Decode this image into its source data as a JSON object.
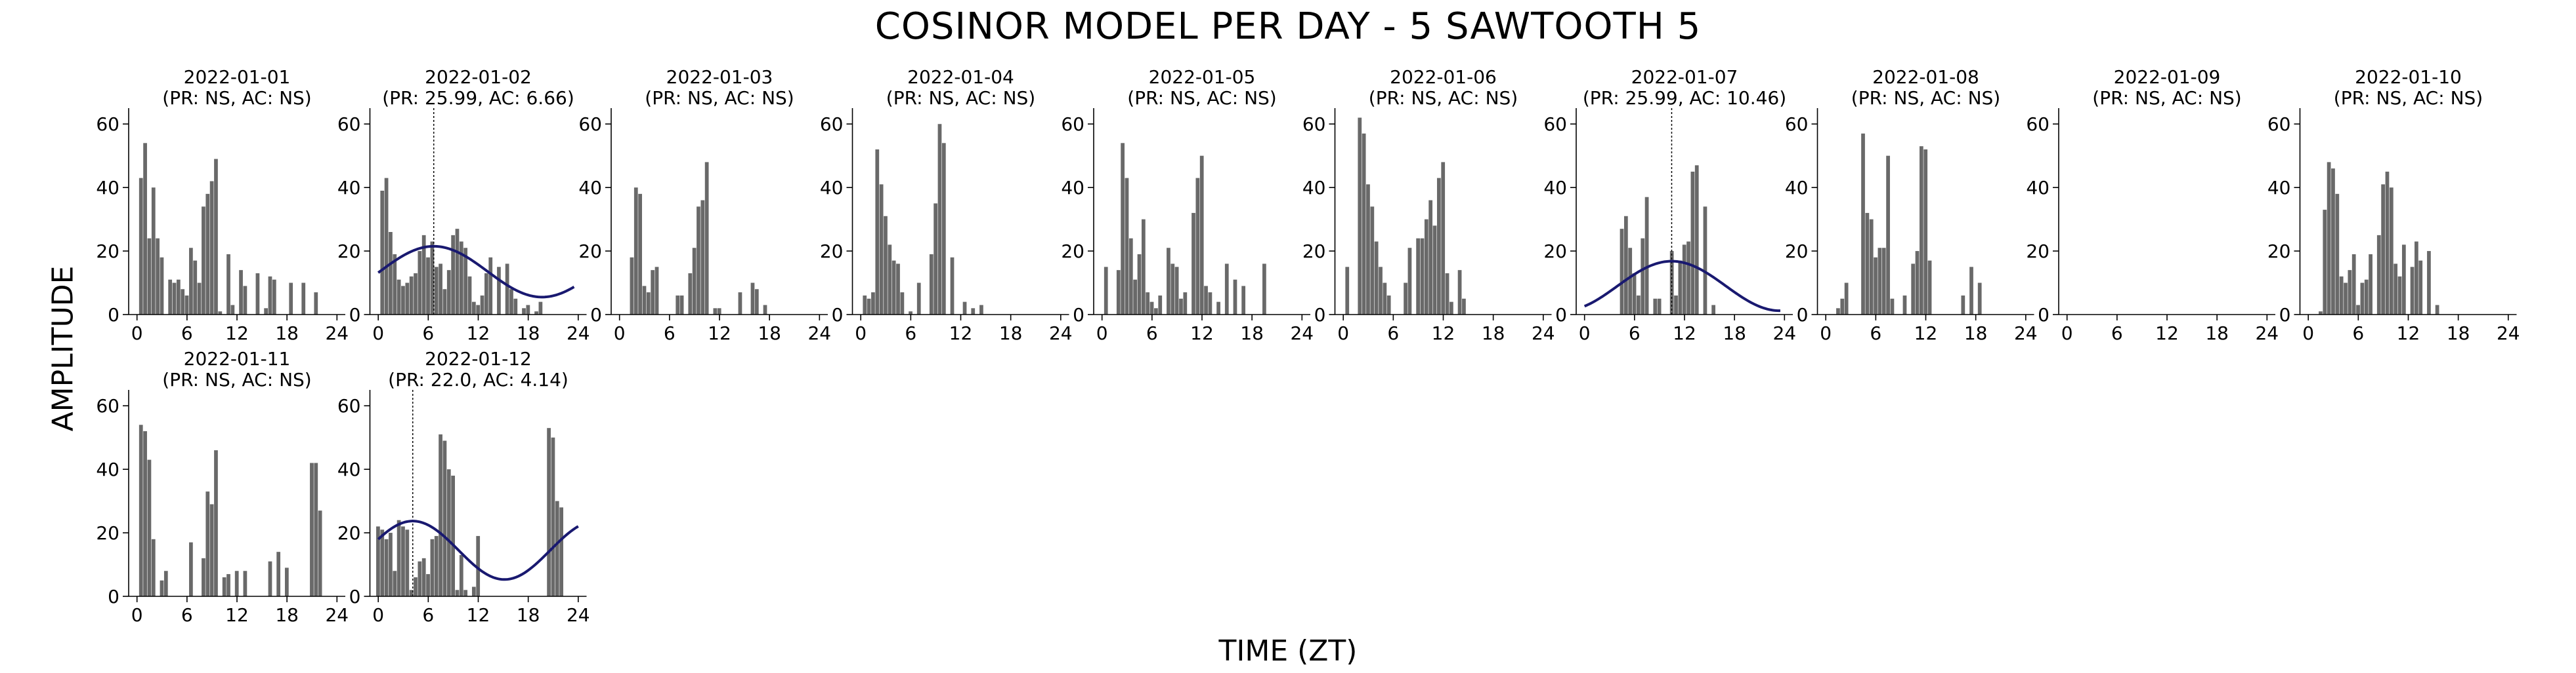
{
  "figure": {
    "title": "COSINOR MODEL PER DAY - 5 SAWTOOTH 5",
    "xlabel": "TIME (ZT)",
    "ylabel": "AMPLITUDE",
    "colors": {
      "bar": "#696969",
      "fit": "#191970",
      "axis": "#000000",
      "acrophase_line": "#000000"
    }
  },
  "chart_data": [
    {
      "type": "bar",
      "title": "2022-01-01",
      "subtitle": "(PR: NS, AC: NS)",
      "xticks": [
        0,
        6,
        12,
        18,
        24
      ],
      "yticks": [
        0,
        20,
        40,
        60
      ],
      "xlim": [
        -1,
        25
      ],
      "ylim": [
        0,
        65
      ],
      "x": [
        0,
        0.5,
        1,
        1.5,
        2,
        2.5,
        3,
        3.5,
        4,
        4.5,
        5,
        5.5,
        6,
        6.5,
        7,
        7.5,
        8,
        8.5,
        9,
        9.5,
        10,
        10.5,
        11,
        11.5,
        12,
        12.5,
        13,
        13.5,
        14,
        14.5,
        15,
        15.5,
        16,
        16.5,
        17,
        17.5,
        18,
        18.5,
        19,
        19.5,
        20,
        20.5,
        21,
        21.5,
        22,
        22.5,
        23,
        23.5
      ],
      "values": [
        0,
        43,
        54,
        24,
        40,
        24,
        18,
        0,
        11,
        10,
        11,
        8,
        6,
        21,
        17,
        10,
        34,
        38,
        42,
        49,
        1,
        0,
        19,
        3,
        0,
        14,
        9,
        0,
        0,
        13,
        0,
        2,
        12,
        11,
        0,
        0,
        0,
        10,
        0,
        0,
        10,
        0,
        0,
        7,
        0,
        0,
        0,
        0
      ]
    },
    {
      "type": "bar",
      "title": "2022-01-02",
      "subtitle": "(PR: 25.99, AC: 6.66)",
      "xticks": [
        0,
        6,
        12,
        18,
        24
      ],
      "yticks": [
        0,
        20,
        40,
        60
      ],
      "xlim": [
        -1,
        25
      ],
      "ylim": [
        0,
        65
      ],
      "x": [
        0,
        0.5,
        1,
        1.5,
        2,
        2.5,
        3,
        3.5,
        4,
        4.5,
        5,
        5.5,
        6,
        6.5,
        7,
        7.5,
        8,
        8.5,
        9,
        9.5,
        10,
        10.5,
        11,
        11.5,
        12,
        12.5,
        13,
        13.5,
        14,
        14.5,
        15,
        15.5,
        16,
        16.5,
        17,
        17.5,
        18,
        18.5,
        19,
        19.5,
        20,
        20.5,
        21,
        21.5,
        22,
        22.5,
        23,
        23.5
      ],
      "values": [
        0,
        39,
        43,
        26,
        19,
        11,
        9,
        10,
        12,
        13,
        20,
        25,
        18,
        23,
        15,
        16,
        8,
        14,
        25,
        27,
        23,
        21,
        12,
        4,
        3,
        6,
        13,
        18,
        0,
        15,
        0,
        16,
        8,
        5,
        0,
        2,
        3,
        0,
        1,
        4,
        0,
        0,
        0,
        0,
        0,
        0,
        0,
        0
      ],
      "fit": {
        "mesor": 13.5,
        "amplitude": 8,
        "period": 25.99,
        "acrophase": 6.66,
        "xrange": [
          0,
          23.5
        ]
      }
    },
    {
      "type": "bar",
      "title": "2022-01-03",
      "subtitle": "(PR: NS, AC: NS)",
      "xticks": [
        0,
        6,
        12,
        18,
        24
      ],
      "yticks": [
        0,
        20,
        40,
        60
      ],
      "xlim": [
        -1,
        25
      ],
      "ylim": [
        0,
        65
      ],
      "x": [
        0,
        0.5,
        1,
        1.5,
        2,
        2.5,
        3,
        3.5,
        4,
        4.5,
        5,
        5.5,
        6,
        6.5,
        7,
        7.5,
        8,
        8.5,
        9,
        9.5,
        10,
        10.5,
        11,
        11.5,
        12,
        12.5,
        13,
        13.5,
        14,
        14.5,
        15,
        15.5,
        16,
        16.5,
        17,
        17.5,
        18,
        18.5,
        19,
        19.5,
        20,
        20.5,
        21,
        21.5,
        22,
        22.5,
        23,
        23.5
      ],
      "values": [
        0,
        0,
        0,
        18,
        40,
        38,
        9,
        7,
        14,
        15,
        0,
        0,
        0,
        0,
        6,
        6,
        0,
        13,
        21,
        34,
        36,
        48,
        0,
        2,
        2,
        0,
        0,
        0,
        0,
        7,
        0,
        0,
        10,
        8,
        0,
        3,
        0,
        0,
        0,
        0,
        0,
        0,
        0,
        0,
        0,
        0,
        0,
        0
      ]
    },
    {
      "type": "bar",
      "title": "2022-01-04",
      "subtitle": "(PR: NS, AC: NS)",
      "xticks": [
        0,
        6,
        12,
        18,
        24
      ],
      "yticks": [
        0,
        20,
        40,
        60
      ],
      "xlim": [
        -1,
        25
      ],
      "ylim": [
        0,
        65
      ],
      "x": [
        0,
        0.5,
        1,
        1.5,
        2,
        2.5,
        3,
        3.5,
        4,
        4.5,
        5,
        5.5,
        6,
        6.5,
        7,
        7.5,
        8,
        8.5,
        9,
        9.5,
        10,
        10.5,
        11,
        11.5,
        12,
        12.5,
        13,
        13.5,
        14,
        14.5,
        15,
        15.5,
        16,
        16.5,
        17,
        17.5,
        18,
        18.5,
        19,
        19.5,
        20,
        20.5,
        21,
        21.5,
        22,
        22.5,
        23,
        23.5
      ],
      "values": [
        0,
        6,
        5,
        7,
        52,
        41,
        31,
        22,
        17,
        16,
        7,
        0,
        1,
        0,
        10,
        0,
        0,
        19,
        35,
        60,
        54,
        0,
        18,
        0,
        0,
        4,
        0,
        2,
        0,
        3,
        0,
        0,
        0,
        0,
        0,
        0,
        0,
        0,
        0,
        0,
        0,
        0,
        0,
        0,
        0,
        0,
        0,
        0
      ]
    },
    {
      "type": "bar",
      "title": "2022-01-05",
      "subtitle": "(PR: NS, AC: NS)",
      "xticks": [
        0,
        6,
        12,
        18,
        24
      ],
      "yticks": [
        0,
        20,
        40,
        60
      ],
      "xlim": [
        -1,
        25
      ],
      "ylim": [
        0,
        65
      ],
      "x": [
        0,
        0.5,
        1,
        1.5,
        2,
        2.5,
        3,
        3.5,
        4,
        4.5,
        5,
        5.5,
        6,
        6.5,
        7,
        7.5,
        8,
        8.5,
        9,
        9.5,
        10,
        10.5,
        11,
        11.5,
        12,
        12.5,
        13,
        13.5,
        14,
        14.5,
        15,
        15.5,
        16,
        16.5,
        17,
        17.5,
        18,
        18.5,
        19,
        19.5,
        20,
        20.5,
        21,
        21.5,
        22,
        22.5,
        23,
        23.5
      ],
      "values": [
        0,
        15,
        0,
        0,
        14,
        54,
        43,
        24,
        11,
        19,
        30,
        7,
        4,
        2,
        6,
        0,
        21,
        16,
        15,
        5,
        7,
        0,
        32,
        43,
        50,
        9,
        7,
        0,
        4,
        0,
        16,
        0,
        11,
        0,
        9,
        0,
        0,
        0,
        0,
        16,
        0,
        0,
        0,
        0,
        0,
        0,
        0,
        0
      ]
    },
    {
      "type": "bar",
      "title": "2022-01-06",
      "subtitle": "(PR: NS, AC: NS)",
      "xticks": [
        0,
        6,
        12,
        18,
        24
      ],
      "yticks": [
        0,
        20,
        40,
        60
      ],
      "xlim": [
        -1,
        25
      ],
      "ylim": [
        0,
        65
      ],
      "x": [
        0,
        0.5,
        1,
        1.5,
        2,
        2.5,
        3,
        3.5,
        4,
        4.5,
        5,
        5.5,
        6,
        6.5,
        7,
        7.5,
        8,
        8.5,
        9,
        9.5,
        10,
        10.5,
        11,
        11.5,
        12,
        12.5,
        13,
        13.5,
        14,
        14.5,
        15,
        15.5,
        16,
        16.5,
        17,
        17.5,
        18,
        18.5,
        19,
        19.5,
        20,
        20.5,
        21,
        21.5,
        22,
        22.5,
        23,
        23.5
      ],
      "values": [
        0,
        15,
        0,
        0,
        62,
        57,
        41,
        34,
        23,
        15,
        10,
        6,
        0,
        0,
        0,
        10,
        21,
        0,
        24,
        24,
        30,
        36,
        28,
        43,
        48,
        13,
        4,
        0,
        14,
        5,
        0,
        0,
        0,
        0,
        0,
        0,
        0,
        0,
        0,
        0,
        0,
        0,
        0,
        0,
        0,
        0,
        0,
        0
      ]
    },
    {
      "type": "bar",
      "title": "2022-01-07",
      "subtitle": "(PR: 25.99, AC: 10.46)",
      "xticks": [
        0,
        6,
        12,
        18,
        24
      ],
      "yticks": [
        0,
        20,
        40,
        60
      ],
      "xlim": [
        -1,
        25
      ],
      "ylim": [
        0,
        65
      ],
      "x": [
        0,
        0.5,
        1,
        1.5,
        2,
        2.5,
        3,
        3.5,
        4,
        4.5,
        5,
        5.5,
        6,
        6.5,
        7,
        7.5,
        8,
        8.5,
        9,
        9.5,
        10,
        10.5,
        11,
        11.5,
        12,
        12.5,
        13,
        13.5,
        14,
        14.5,
        15,
        15.5,
        16,
        16.5,
        17,
        17.5,
        18,
        18.5,
        19,
        19.5,
        20,
        20.5,
        21,
        21.5,
        22,
        22.5,
        23,
        23.5
      ],
      "values": [
        0,
        0,
        0,
        0,
        0,
        0,
        0,
        0,
        0,
        27,
        31,
        21,
        13,
        6,
        24,
        37,
        0,
        5,
        5,
        0,
        0,
        20,
        6,
        17,
        22,
        23,
        45,
        47,
        0,
        34,
        0,
        3,
        0,
        0,
        0,
        0,
        0,
        0,
        0,
        0,
        0,
        0,
        0,
        0,
        0,
        0,
        0,
        0
      ],
      "fit": {
        "mesor": 9,
        "amplitude": 7.8,
        "period": 25.99,
        "acrophase": 10.46,
        "xrange": [
          0,
          23.5
        ]
      }
    },
    {
      "type": "bar",
      "title": "2022-01-08",
      "subtitle": "(PR: NS, AC: NS)",
      "xticks": [
        0,
        6,
        12,
        18,
        24
      ],
      "yticks": [
        0,
        20,
        40,
        60
      ],
      "xlim": [
        -1,
        25
      ],
      "ylim": [
        0,
        65
      ],
      "x": [
        0,
        0.5,
        1,
        1.5,
        2,
        2.5,
        3,
        3.5,
        4,
        4.5,
        5,
        5.5,
        6,
        6.5,
        7,
        7.5,
        8,
        8.5,
        9,
        9.5,
        10,
        10.5,
        11,
        11.5,
        12,
        12.5,
        13,
        13.5,
        14,
        14.5,
        15,
        15.5,
        16,
        16.5,
        17,
        17.5,
        18,
        18.5,
        19,
        19.5,
        20,
        20.5,
        21,
        21.5,
        22,
        22.5,
        23,
        23.5
      ],
      "values": [
        0,
        0,
        0,
        2,
        5,
        10,
        0,
        0,
        0,
        57,
        32,
        30,
        18,
        21,
        21,
        50,
        5,
        0,
        0,
        6,
        0,
        16,
        20,
        53,
        52,
        17,
        0,
        0,
        0,
        0,
        0,
        0,
        0,
        6,
        0,
        15,
        0,
        10,
        0,
        0,
        0,
        0,
        0,
        0,
        0,
        0,
        0,
        0
      ]
    },
    {
      "type": "bar",
      "title": "2022-01-09",
      "subtitle": "(PR: NS, AC: NS)",
      "xticks": [
        0,
        6,
        12,
        18,
        24
      ],
      "yticks": [
        0,
        20,
        40,
        60
      ],
      "xlim": [
        -1,
        25
      ],
      "ylim": [
        0,
        65
      ],
      "x": [
        0,
        0.5,
        1,
        1.5,
        2,
        2.5,
        3,
        3.5,
        4,
        4.5,
        5,
        5.5,
        6,
        6.5,
        7,
        7.5,
        8,
        8.5,
        9,
        9.5,
        10,
        10.5,
        11,
        11.5,
        12,
        12.5,
        13,
        13.5,
        14,
        14.5,
        15,
        15.5,
        16,
        16.5,
        17,
        17.5,
        18,
        18.5,
        19,
        19.5,
        20,
        20.5,
        21,
        21.5,
        22,
        22.5,
        23,
        23.5
      ],
      "values": [
        0,
        0,
        0,
        0,
        0,
        0,
        0,
        0,
        0,
        0,
        0,
        0,
        0,
        0,
        0,
        0,
        0,
        0,
        0,
        0,
        0,
        0,
        0,
        0,
        0,
        0,
        0,
        0,
        0,
        0,
        0,
        0,
        0,
        0,
        0,
        0,
        0,
        0,
        0,
        0,
        0,
        0,
        0,
        0,
        0,
        0,
        0,
        0
      ]
    },
    {
      "type": "bar",
      "title": "2022-01-10",
      "subtitle": "(PR: NS, AC: NS)",
      "xticks": [
        0,
        6,
        12,
        18,
        24
      ],
      "yticks": [
        0,
        20,
        40,
        60
      ],
      "xlim": [
        -1,
        25
      ],
      "ylim": [
        0,
        65
      ],
      "x": [
        0,
        0.5,
        1,
        1.5,
        2,
        2.5,
        3,
        3.5,
        4,
        4.5,
        5,
        5.5,
        6,
        6.5,
        7,
        7.5,
        8,
        8.5,
        9,
        9.5,
        10,
        10.5,
        11,
        11.5,
        12,
        12.5,
        13,
        13.5,
        14,
        14.5,
        15,
        15.5,
        16,
        16.5,
        17,
        17.5,
        18,
        18.5,
        19,
        19.5,
        20,
        20.5,
        21,
        21.5,
        22,
        22.5,
        23,
        23.5
      ],
      "values": [
        0,
        0,
        0,
        1,
        33,
        48,
        46,
        38,
        12,
        10,
        14,
        19,
        3,
        10,
        11,
        19,
        0,
        25,
        41,
        45,
        40,
        16,
        12,
        22,
        0,
        15,
        23,
        17,
        0,
        20,
        0,
        3,
        0,
        0,
        0,
        0,
        0,
        0,
        0,
        0,
        0,
        0,
        0,
        0,
        0,
        0,
        0,
        0
      ]
    },
    {
      "type": "bar",
      "title": "2022-01-11",
      "subtitle": "(PR: NS, AC: NS)",
      "xticks": [
        0,
        6,
        12,
        18,
        24
      ],
      "yticks": [
        0,
        20,
        40,
        60
      ],
      "xlim": [
        -1,
        25
      ],
      "ylim": [
        0,
        65
      ],
      "x": [
        0,
        0.5,
        1,
        1.5,
        2,
        2.5,
        3,
        3.5,
        4,
        4.5,
        5,
        5.5,
        6,
        6.5,
        7,
        7.5,
        8,
        8.5,
        9,
        9.5,
        10,
        10.5,
        11,
        11.5,
        12,
        12.5,
        13,
        13.5,
        14,
        14.5,
        15,
        15.5,
        16,
        16.5,
        17,
        17.5,
        18,
        18.5,
        19,
        19.5,
        20,
        20.5,
        21,
        21.5,
        22,
        22.5,
        23,
        23.5
      ],
      "values": [
        0,
        54,
        52,
        43,
        18,
        0,
        5,
        8,
        0,
        0,
        0,
        0,
        0,
        17,
        0,
        0,
        12,
        33,
        29,
        46,
        0,
        6,
        7,
        0,
        8,
        0,
        8,
        0,
        0,
        0,
        0,
        0,
        11,
        0,
        14,
        0,
        9,
        0,
        0,
        0,
        0,
        0,
        42,
        42,
        27,
        0,
        0,
        0
      ]
    },
    {
      "type": "bar",
      "title": "2022-01-12",
      "subtitle": "(PR: 22.0, AC: 4.14)",
      "xticks": [
        0,
        6,
        12,
        18,
        24
      ],
      "yticks": [
        0,
        20,
        40,
        60
      ],
      "xlim": [
        -1,
        25
      ],
      "ylim": [
        0,
        65
      ],
      "x": [
        0,
        0.5,
        1,
        1.5,
        2,
        2.5,
        3,
        3.5,
        4,
        4.5,
        5,
        5.5,
        6,
        6.5,
        7,
        7.5,
        8,
        8.5,
        9,
        9.5,
        10,
        10.5,
        11,
        11.5,
        12,
        12.5,
        13,
        13.5,
        14,
        14.5,
        15,
        15.5,
        16,
        16.5,
        17,
        17.5,
        18,
        18.5,
        19,
        19.5,
        20,
        20.5,
        21,
        21.5,
        22,
        22.5,
        23,
        23.5
      ],
      "values": [
        22,
        21,
        18,
        20,
        8,
        24,
        22,
        21,
        2,
        6,
        11,
        12,
        7,
        18,
        19,
        51,
        49,
        40,
        38,
        2,
        13,
        2,
        0,
        3,
        19,
        0,
        0,
        0,
        0,
        0,
        0,
        0,
        0,
        0,
        0,
        0,
        0,
        0,
        0,
        0,
        0,
        53,
        50,
        30,
        28,
        0,
        0,
        0
      ],
      "fit": {
        "mesor": 14.5,
        "amplitude": 9.2,
        "period": 22.0,
        "acrophase": 4.14,
        "xrange": [
          0,
          24
        ]
      }
    }
  ]
}
